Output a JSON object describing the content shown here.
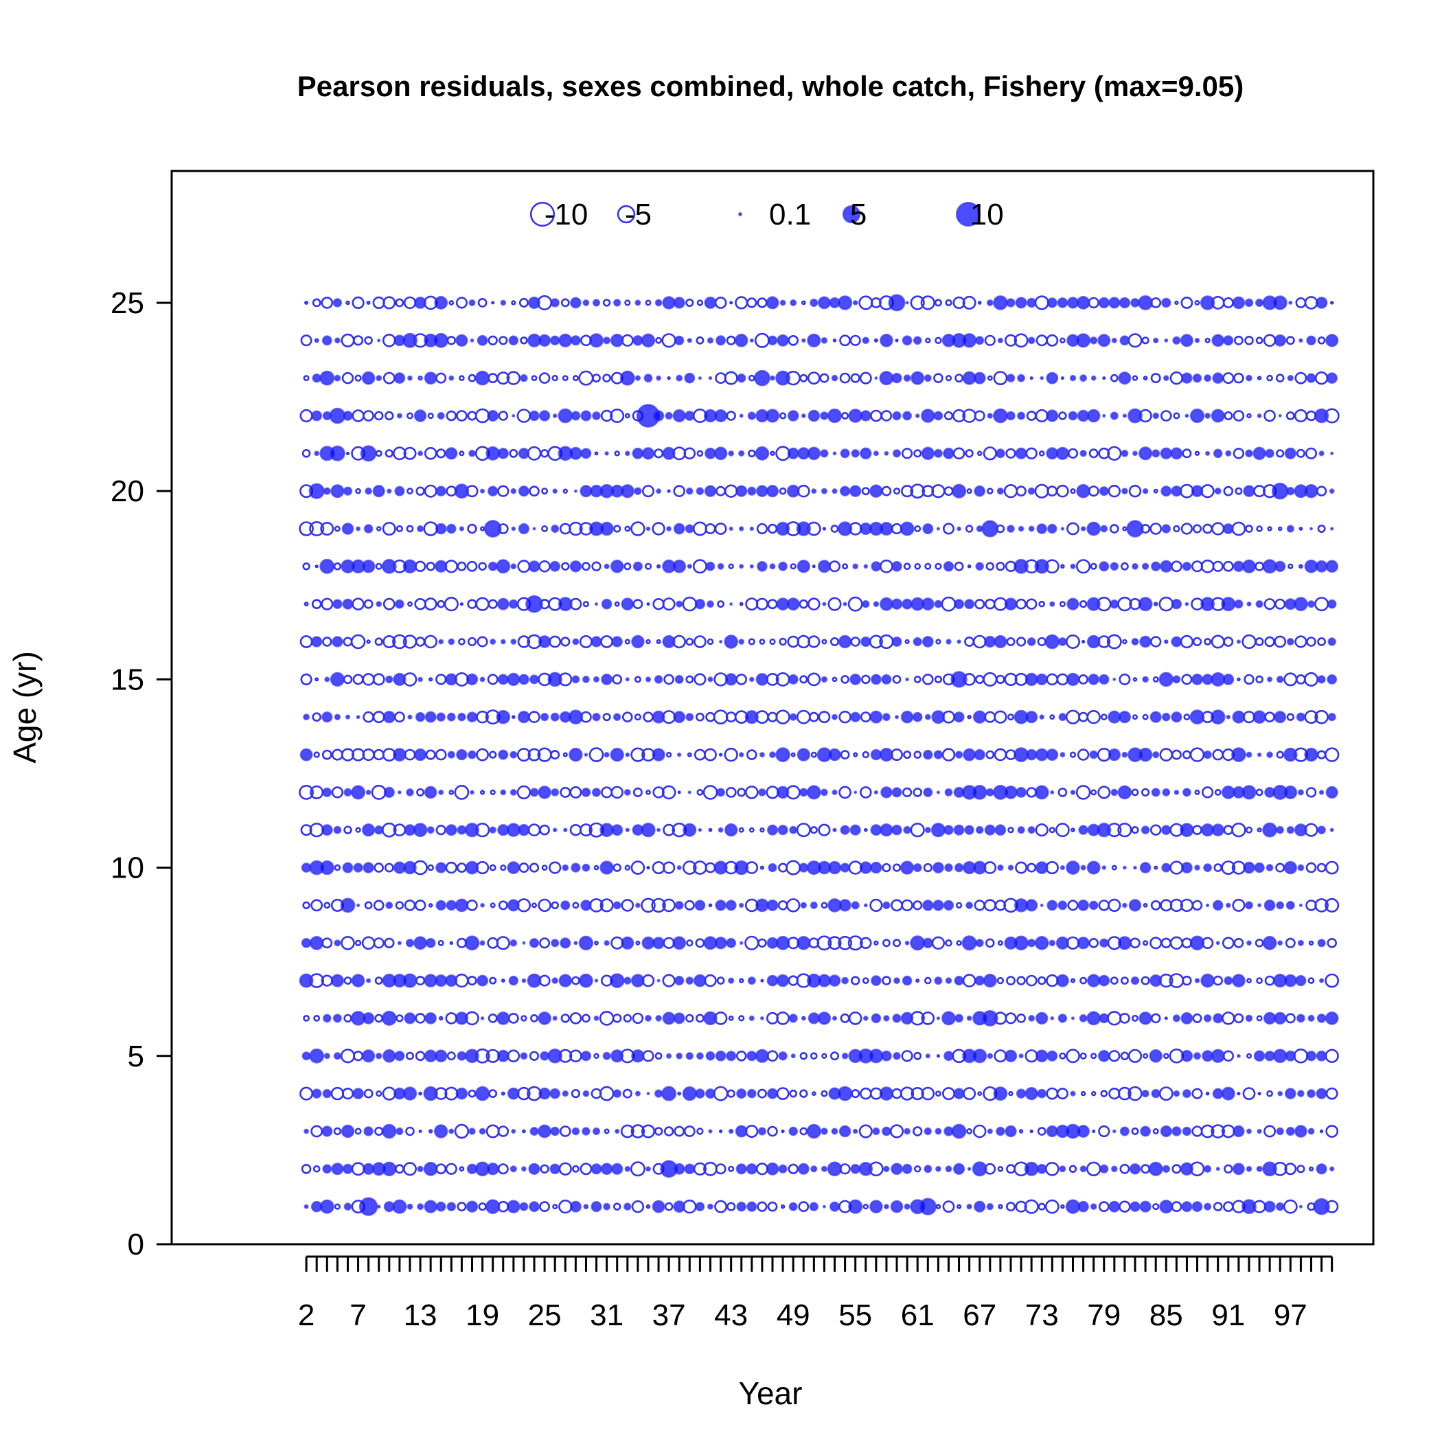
{
  "chart_data": {
    "type": "bubble",
    "title": "Pearson residuals, sexes combined, whole catch, Fishery (max=9.05)",
    "xlabel": "Year",
    "ylabel": "Age (yr)",
    "x_range": [
      1,
      100
    ],
    "xlim": [
      -12,
      104
    ],
    "ylim": [
      0,
      28.5
    ],
    "x_tick_labels": [
      2,
      7,
      13,
      19,
      25,
      31,
      37,
      43,
      49,
      55,
      61,
      67,
      73,
      79,
      85,
      91,
      97
    ],
    "y_ticks": [
      0,
      5,
      10,
      15,
      20,
      25
    ],
    "ages": [
      1,
      25
    ],
    "fill_color": "#0000ff",
    "fill_opacity": 0.7,
    "stroke_color": "#3333ee",
    "negative_style": "open circle",
    "positive_style": "filled circle",
    "max_residual": 9.05,
    "legend": {
      "placement": "top-center",
      "entries": [
        {
          "label": "-10",
          "value": -10
        },
        {
          "label": "-5",
          "value": -5
        },
        {
          "label": "0.1",
          "value": 0.1
        },
        {
          "label": "5",
          "value": 5
        },
        {
          "label": "10",
          "value": 10
        }
      ]
    },
    "large_residuals": [
      {
        "year": 34,
        "age": 22,
        "value": 9.05
      },
      {
        "year": 7,
        "age": 1,
        "value": 5.5
      },
      {
        "year": 23,
        "age": 17,
        "value": 4.8
      },
      {
        "year": 19,
        "age": 19,
        "value": 4.8
      },
      {
        "year": 81,
        "age": 19,
        "value": 4.6
      },
      {
        "year": 67,
        "age": 19,
        "value": 4.5
      },
      {
        "year": 95,
        "age": 20,
        "value": 4.3
      },
      {
        "year": 58,
        "age": 25,
        "value": 4.5
      },
      {
        "year": 61,
        "age": 1,
        "value": 4.6
      },
      {
        "year": 36,
        "age": 2,
        "value": 4.8
      },
      {
        "year": 99,
        "age": 1,
        "value": 4.3
      },
      {
        "year": 64,
        "age": 15,
        "value": 4.2
      },
      {
        "year": 67,
        "age": 6,
        "value": 4.0
      },
      {
        "year": 7,
        "age": 21,
        "value": 4.0
      },
      {
        "year": 45,
        "age": 23,
        "value": 4.0
      },
      {
        "year": 2,
        "age": 20,
        "value": 3.8
      },
      {
        "year": 4,
        "age": 22,
        "value": 3.9
      },
      {
        "year": 4,
        "age": 21,
        "value": 3.7
      },
      {
        "year": 2,
        "age": 10,
        "value": 3.2
      },
      {
        "year": 2,
        "age": 5,
        "value": 3.3
      }
    ],
    "note": "Residual grid covers years 1-100 and ages 1-25; each cell is one residual drawn as a circle whose area scales with |value|."
  }
}
